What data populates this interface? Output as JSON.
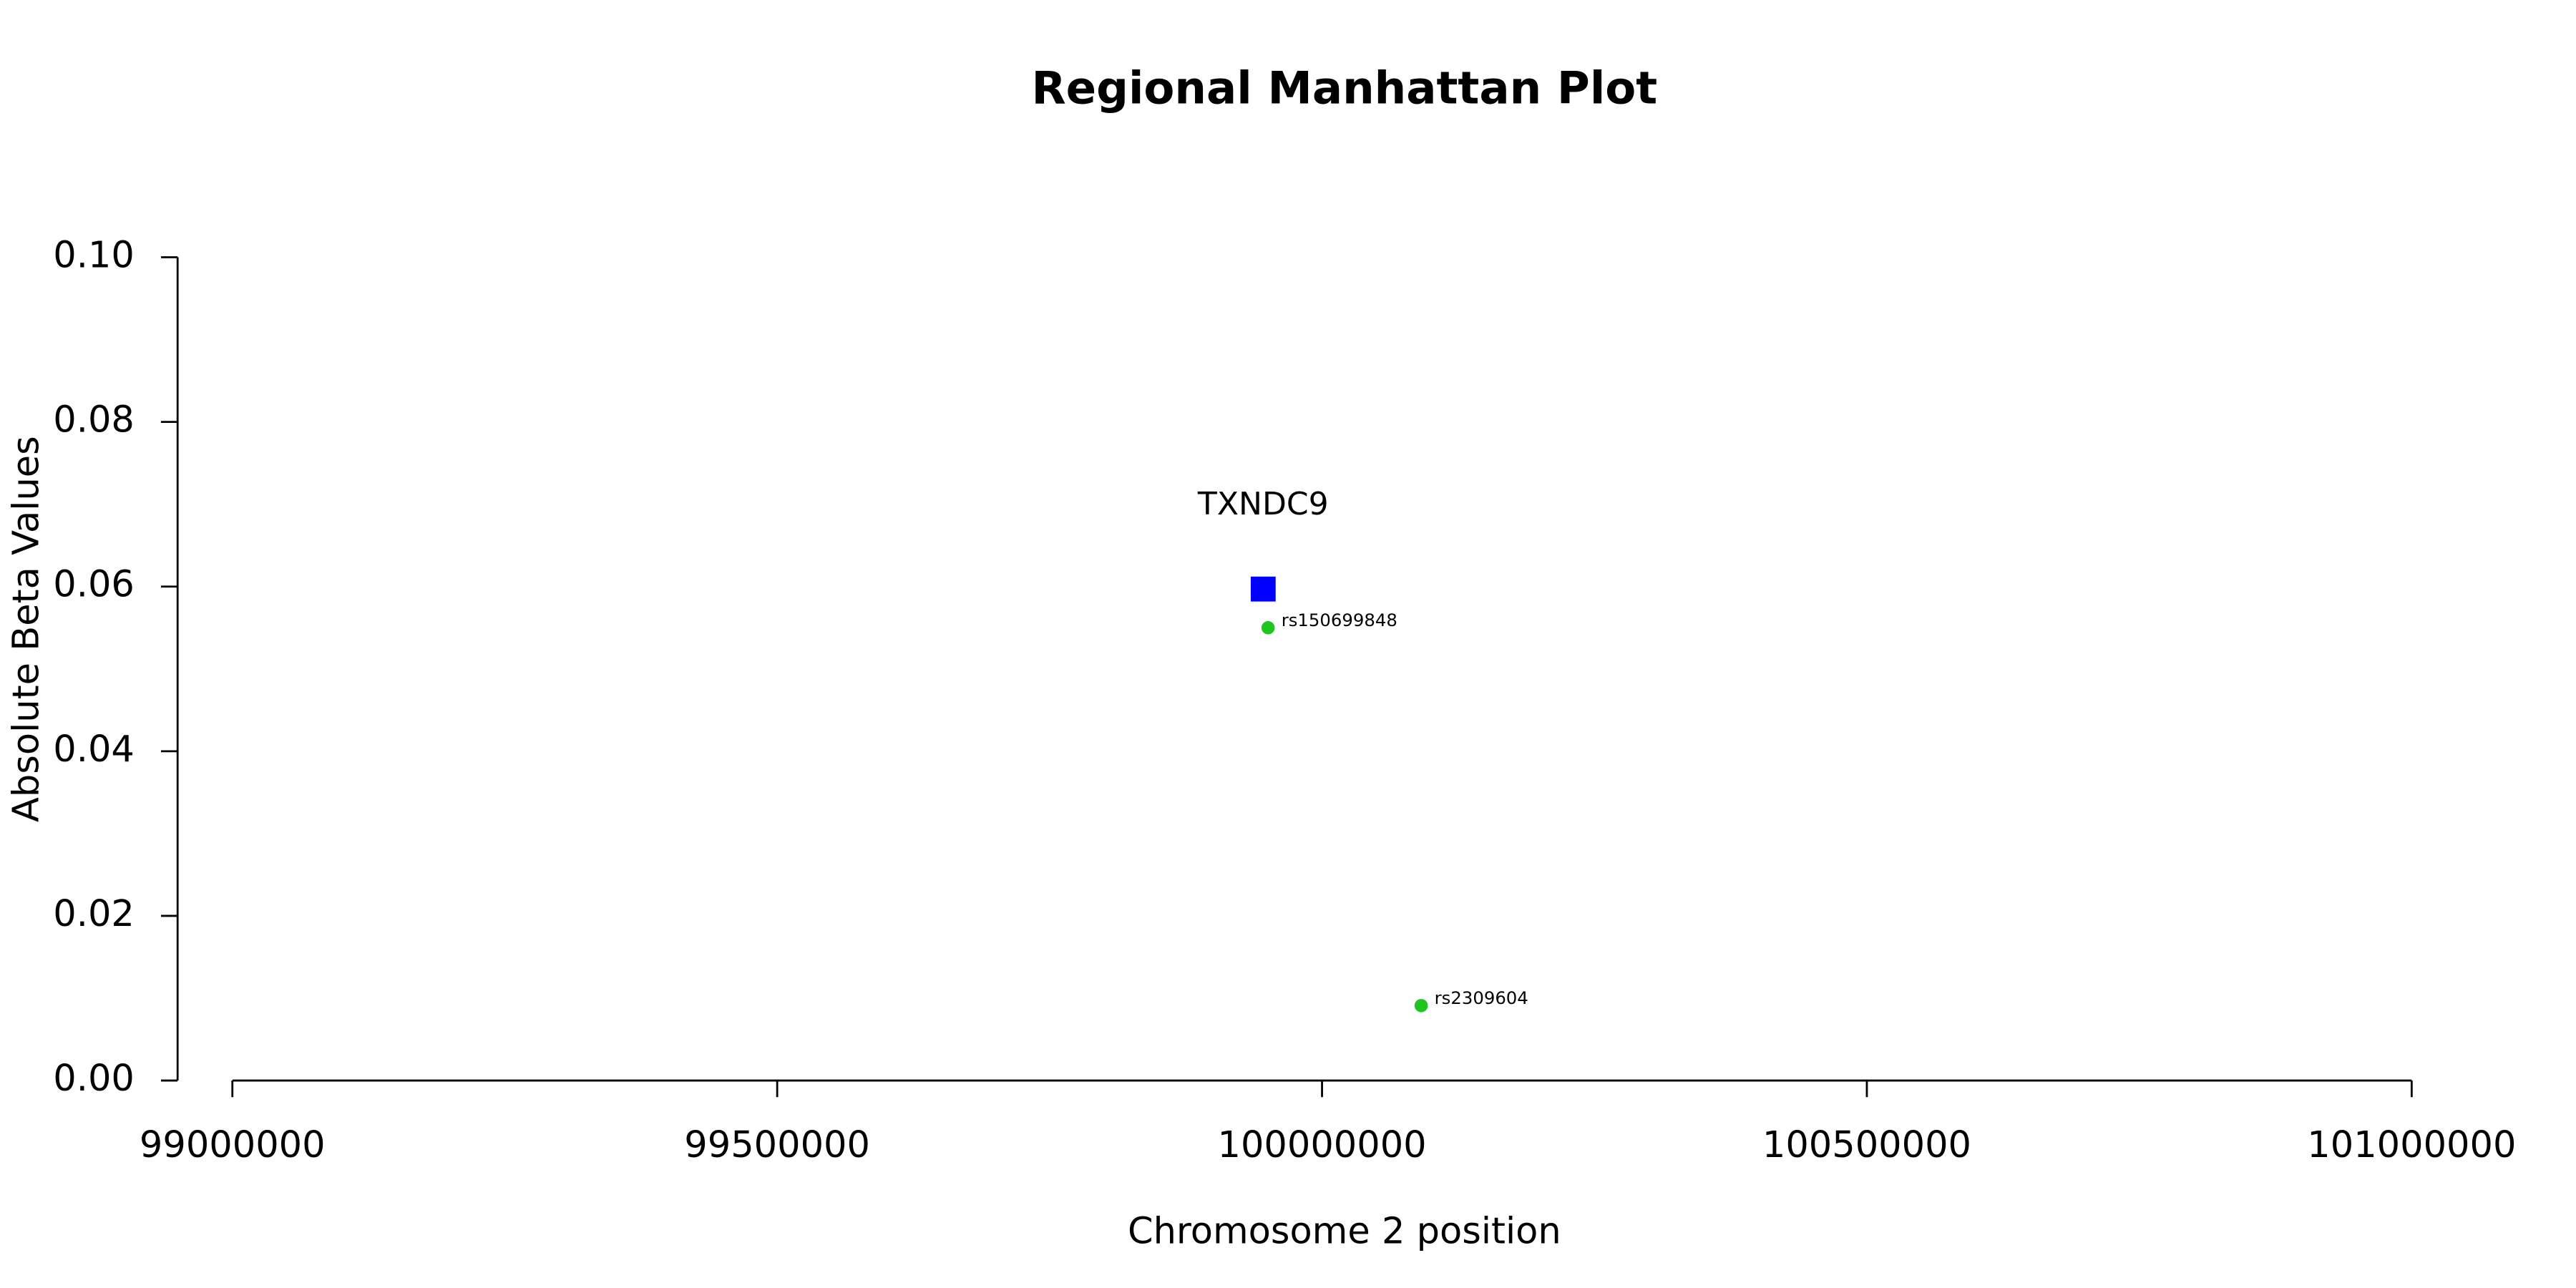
{
  "chart_data": {
    "type": "scatter",
    "title": "Regional Manhattan Plot",
    "x_label": "Chromosome 2 position",
    "y_label": "Absolute Beta Values",
    "xlim": [
      99000000,
      101000000
    ],
    "xticks": [
      99000000,
      99500000,
      100000000,
      100500000,
      101000000
    ],
    "ylim": [
      0,
      0.1
    ],
    "yticks": [
      {
        "value": 0,
        "label": "0.00"
      },
      {
        "value": 0.02,
        "label": "0.02"
      },
      {
        "value": 0.04,
        "label": "0.04"
      },
      {
        "value": 0.06,
        "label": "0.06"
      },
      {
        "value": 0.08,
        "label": "0.08"
      },
      {
        "value": 0.1,
        "label": "0.10"
      }
    ],
    "grid": false,
    "series": [
      {
        "name": "TXNDC9",
        "color": "#0000ff",
        "marker": "square",
        "x": [
          99946000
        ],
        "values": [
          0.0597
        ]
      },
      {
        "color": "#1fc41f",
        "marker": "circle",
        "x": [
          99950500,
          100091000
        ],
        "values": [
          0.055,
          0.0091
        ],
        "labels": [
          "rs150699848",
          "rs2309604"
        ]
      }
    ]
  }
}
